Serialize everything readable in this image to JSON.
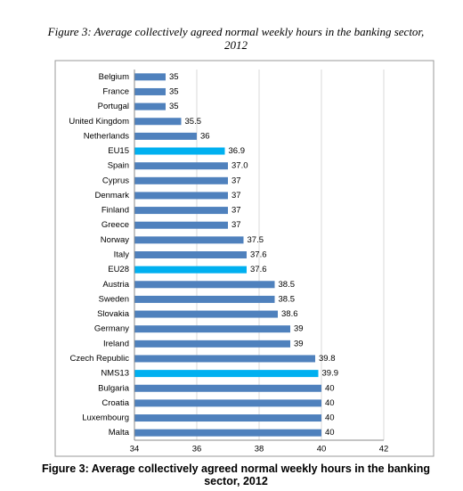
{
  "chart_data": {
    "type": "hbar",
    "title": "Figure 3: Average collectively agreed normal weekly hours in the banking sector, 2012",
    "caption": "Figure 3: Average collectively agreed normal weekly hours in the banking sector, 2012",
    "categories": [
      "Belgium",
      "France",
      "Portugal",
      "United Kingdom",
      "Netherlands",
      "EU15",
      "Spain",
      "Cyprus",
      "Denmark",
      "Finland",
      "Greece",
      "Norway",
      "Italy",
      "EU28",
      "Austria",
      "Sweden",
      "Slovakia",
      "Germany",
      "Ireland",
      "Czech Republic",
      "NMS13",
      "Bulgaria",
      "Croatia",
      "Luxembourg",
      "Malta"
    ],
    "values": [
      35,
      35,
      35,
      35.5,
      36,
      36.9,
      37,
      37,
      37,
      37,
      37,
      37.5,
      37.6,
      37.6,
      38.5,
      38.5,
      38.6,
      39,
      39,
      39.8,
      39.9,
      40,
      40,
      40,
      40
    ],
    "value_labels": [
      "35",
      "35",
      "35",
      "35.5",
      "36",
      "36.9",
      "37.0",
      "37",
      "37",
      "37",
      "37",
      "37.5",
      "37.6",
      "37.6",
      "38.5",
      "38.5",
      "38.6",
      "39",
      "39",
      "39.8",
      "39.9",
      "40",
      "40",
      "40",
      "40"
    ],
    "colors": [
      "#4f81bd",
      "#4f81bd",
      "#4f81bd",
      "#4f81bd",
      "#4f81bd",
      "#00b0f0",
      "#4f81bd",
      "#4f81bd",
      "#4f81bd",
      "#4f81bd",
      "#4f81bd",
      "#4f81bd",
      "#4f81bd",
      "#00b0f0",
      "#4f81bd",
      "#4f81bd",
      "#4f81bd",
      "#4f81bd",
      "#4f81bd",
      "#4f81bd",
      "#00b0f0",
      "#4f81bd",
      "#4f81bd",
      "#4f81bd",
      "#4f81bd"
    ],
    "xlim": [
      34,
      42
    ],
    "xticks": [
      34,
      36,
      38,
      40,
      42
    ],
    "grid": true
  }
}
